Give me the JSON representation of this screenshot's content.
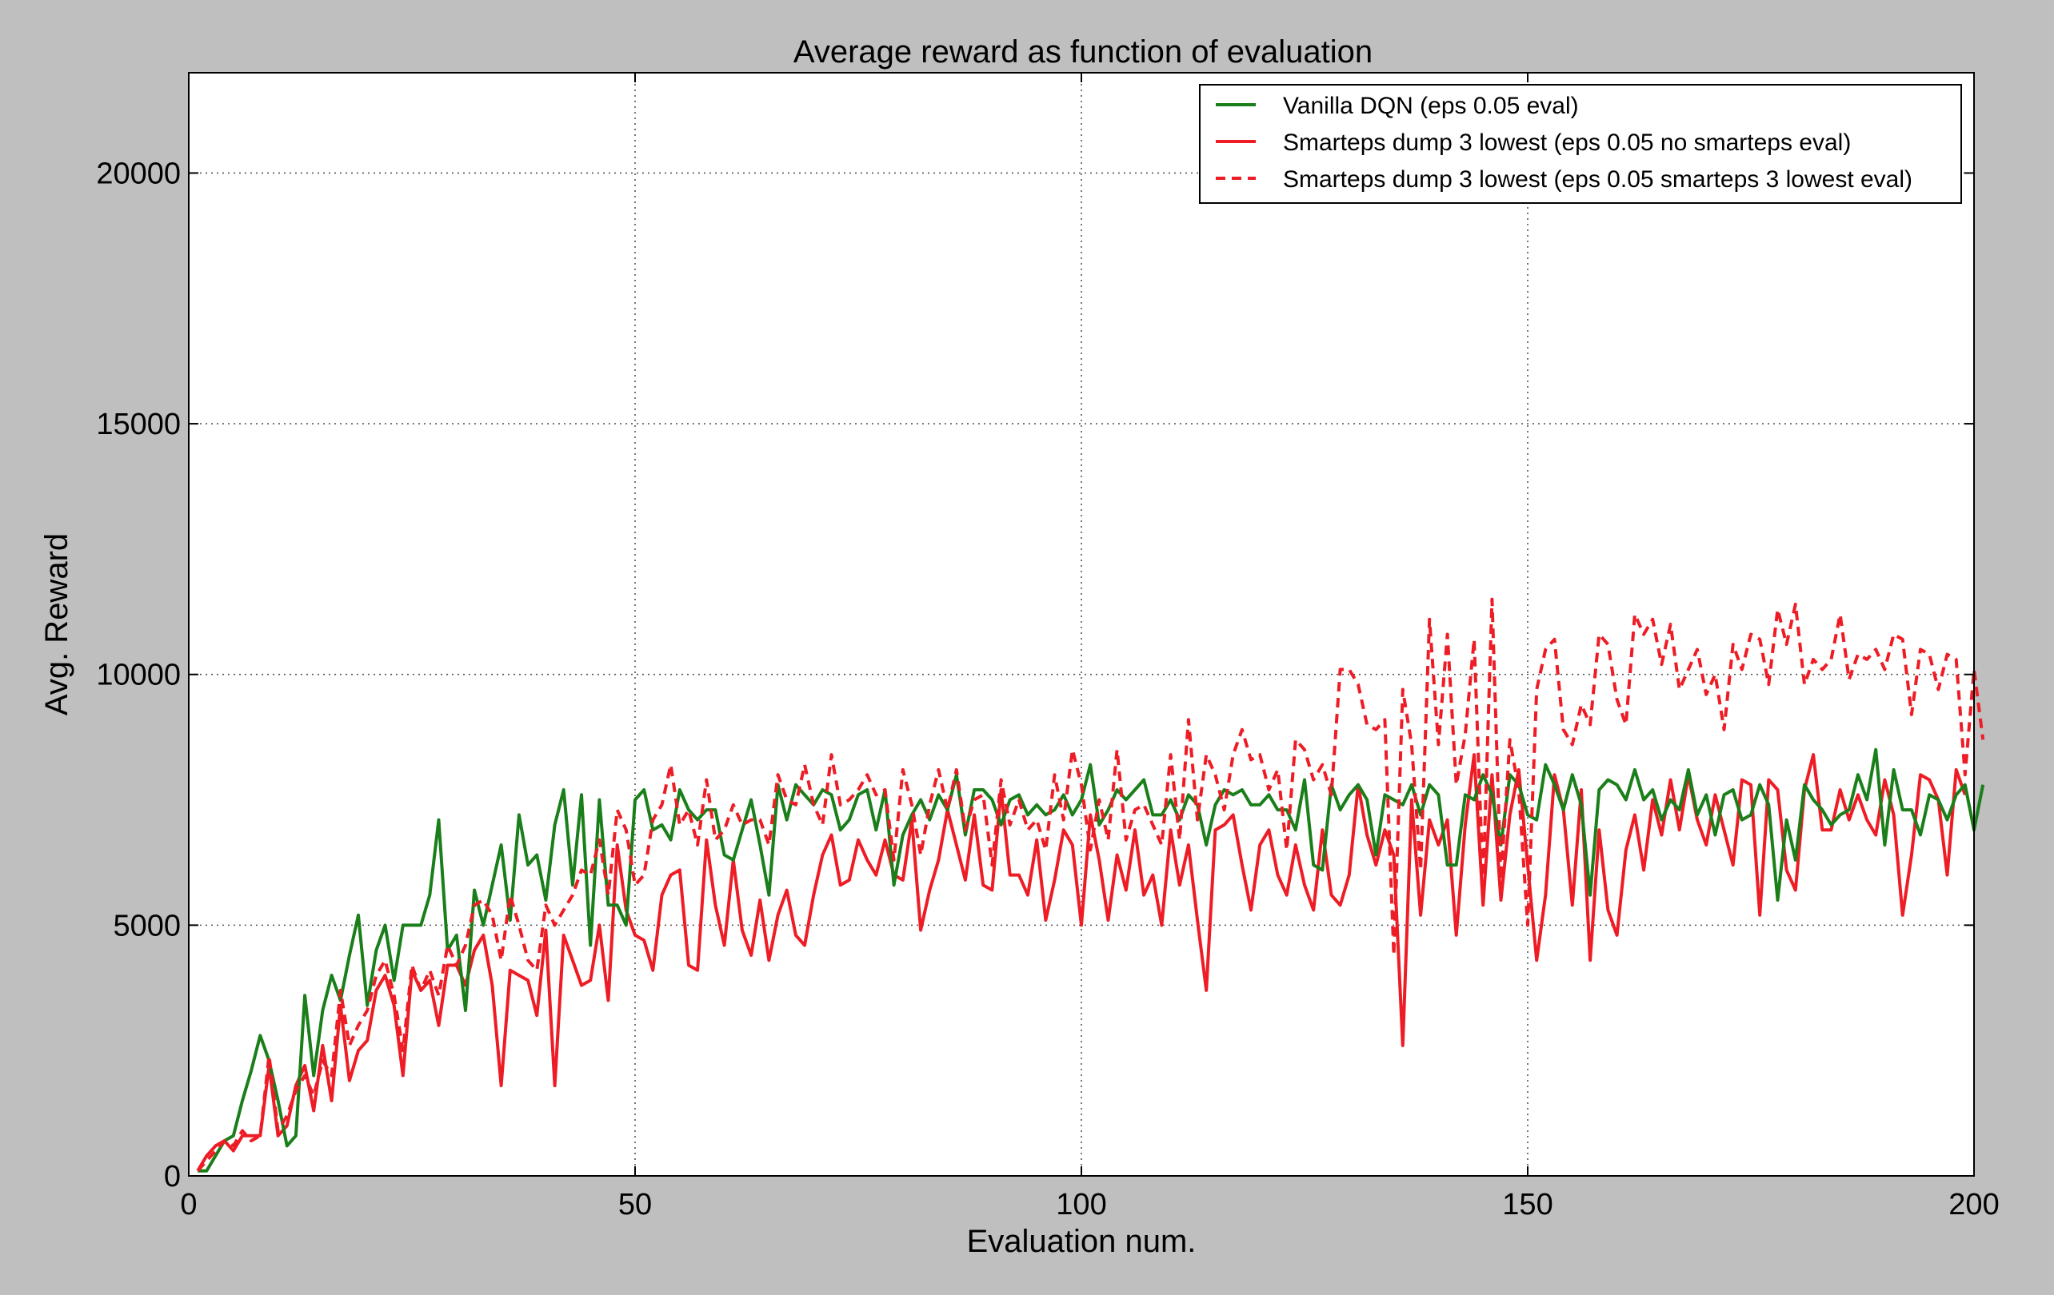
{
  "chart_data": {
    "type": "line",
    "title": "Average reward as function of evaluation",
    "xlabel": "Evaluation num.",
    "ylabel": "Avg. Reward",
    "xlim": [
      0,
      200
    ],
    "ylim": [
      0,
      22000
    ],
    "xticks": [
      0,
      50,
      100,
      150,
      200
    ],
    "yticks": [
      0,
      5000,
      10000,
      15000,
      20000
    ],
    "grid": true,
    "legend_position": "top-right",
    "series": [
      {
        "name": "Vanilla DQN (eps 0.05 eval)",
        "color": "#1a7f1a",
        "dash": "solid",
        "values": [
          100,
          100,
          400,
          700,
          800,
          1500,
          2100,
          2800,
          2300,
          1500,
          600,
          800,
          3600,
          2000,
          3300,
          4000,
          3500,
          4400,
          5200,
          3400,
          4500,
          5000,
          3900,
          5000,
          5000,
          5000,
          5600,
          7100,
          4500,
          4800,
          3300,
          5700,
          5000,
          5800,
          6600,
          5100,
          7200,
          6200,
          6400,
          5500,
          7000,
          7700,
          5800,
          7600,
          4600,
          7500,
          5400,
          5400,
          5000,
          7500,
          7700,
          6900,
          7000,
          6700,
          7700,
          7300,
          7100,
          7300,
          7300,
          6400,
          6300,
          6900,
          7500,
          6600,
          5600,
          7800,
          7100,
          7800,
          7600,
          7400,
          7700,
          7600,
          6900,
          7100,
          7600,
          7700,
          6900,
          7700,
          5800,
          6800,
          7200,
          7500,
          7100,
          7600,
          7300,
          8000,
          6800,
          7700,
          7700,
          7500,
          7000,
          7500,
          7600,
          7200,
          7400,
          7200,
          7300,
          7600,
          7200,
          7500,
          8200,
          7000,
          7300,
          7700,
          7500,
          7700,
          7900,
          7200,
          7200,
          7500,
          7100,
          7600,
          7400,
          6600,
          7400,
          7700,
          7600,
          7700,
          7400,
          7400,
          7600,
          7300,
          7300,
          6900,
          7900,
          6200,
          6100,
          7800,
          7300,
          7600,
          7800,
          7500,
          6400,
          7600,
          7500,
          7400,
          7800,
          7200,
          7800,
          7600,
          6200,
          6200,
          7600,
          7500,
          8000,
          7600,
          6600,
          8000,
          7800,
          7200,
          7100,
          8200,
          7800,
          7300,
          8000,
          7400,
          5600,
          7700,
          7900,
          7800,
          7500,
          8100,
          7500,
          7700,
          7100,
          7500,
          7300,
          8100,
          7200,
          7600,
          6800,
          7600,
          7700,
          7100,
          7200,
          7800,
          7400,
          5500,
          7100,
          6300,
          7800,
          7500,
          7300,
          7000,
          7200,
          7300,
          8000,
          7500,
          8500,
          6600,
          8100,
          7300,
          7300,
          6800,
          7600,
          7500,
          7100,
          7600,
          7800,
          6900,
          7800
        ]
      },
      {
        "name": "Smarteps dump 3 lowest (eps 0.05 no smarteps eval)",
        "color": "#ee1c25",
        "dash": "solid",
        "values": [
          100,
          400,
          600,
          700,
          500,
          800,
          800,
          800,
          2200,
          800,
          1000,
          1800,
          2200,
          1300,
          2600,
          1500,
          3400,
          1900,
          2500,
          2700,
          3700,
          4000,
          3400,
          2000,
          4100,
          3700,
          3900,
          3000,
          4200,
          4200,
          3800,
          4500,
          4800,
          3800,
          1800,
          4100,
          4000,
          3900,
          3200,
          4900,
          1800,
          4800,
          4300,
          3800,
          3900,
          5000,
          3500,
          6600,
          5300,
          4800,
          4700,
          4100,
          5600,
          6000,
          6100,
          4200,
          4100,
          6700,
          5400,
          4600,
          6300,
          4900,
          4400,
          5500,
          4300,
          5200,
          5700,
          4800,
          4600,
          5600,
          6400,
          6800,
          5800,
          5900,
          6700,
          6300,
          6000,
          6700,
          6000,
          5900,
          7100,
          4900,
          5700,
          6300,
          7300,
          6600,
          5900,
          7200,
          5800,
          5700,
          7700,
          6000,
          6000,
          5600,
          6700,
          5100,
          5900,
          6900,
          6600,
          5000,
          7200,
          6300,
          5100,
          6400,
          5700,
          6900,
          5600,
          6000,
          5000,
          6900,
          5800,
          6600,
          5100,
          3700,
          6900,
          7000,
          7200,
          6200,
          5300,
          6600,
          6900,
          6000,
          5600,
          6600,
          5800,
          5300,
          6900,
          5600,
          5400,
          6000,
          7800,
          6800,
          6200,
          6900,
          6400,
          2600,
          7500,
          5200,
          7100,
          6600,
          7100,
          4800,
          7000,
          8400,
          5400,
          8000,
          5500,
          7200,
          8100,
          6200,
          4300,
          5600,
          8000,
          7300,
          5400,
          7700,
          4300,
          6900,
          5300,
          4800,
          6500,
          7200,
          6100,
          7500,
          6800,
          7900,
          6900,
          8000,
          7100,
          6600,
          7600,
          6900,
          6200,
          7900,
          7800,
          5200,
          7900,
          7700,
          6100,
          5700,
          7700,
          8400,
          6900,
          6900,
          7700,
          7100,
          7600,
          7100,
          6800,
          7900,
          7200,
          5200,
          6400,
          8000,
          7900,
          7500,
          6000,
          8100,
          7600
        ]
      },
      {
        "name": "Smarteps dump 3 lowest (eps 0.05 smarteps 3 lowest eval)",
        "color": "#ee1c25",
        "dash": "dashed",
        "values": [
          100,
          300,
          500,
          700,
          600,
          900,
          700,
          800,
          2400,
          900,
          1200,
          1700,
          2000,
          1600,
          2300,
          2000,
          3700,
          2600,
          3000,
          3300,
          4000,
          4300,
          3600,
          2500,
          4200,
          3700,
          4100,
          3600,
          4600,
          4200,
          4600,
          5400,
          5500,
          5200,
          4300,
          5600,
          5000,
          4300,
          4100,
          5400,
          5000,
          5300,
          5600,
          6100,
          6000,
          6700,
          5600,
          7300,
          6900,
          5800,
          6000,
          7100,
          7400,
          8200,
          7000,
          7300,
          6600,
          7900,
          6700,
          6900,
          7400,
          7000,
          7100,
          7100,
          6600,
          8000,
          7500,
          7400,
          8200,
          7400,
          7000,
          8400,
          7400,
          7500,
          7700,
          8000,
          7600,
          7700,
          6300,
          8100,
          7400,
          6400,
          7400,
          8100,
          7300,
          8100,
          6900,
          7500,
          7600,
          6200,
          7900,
          7000,
          7500,
          6900,
          7100,
          6500,
          8000,
          7100,
          8500,
          7800,
          6500,
          7500,
          6700,
          8500,
          6700,
          7300,
          7400,
          7000,
          6600,
          8400,
          6700,
          9100,
          7100,
          8400,
          8000,
          7300,
          8400,
          8900,
          8300,
          8400,
          7700,
          8100,
          6500,
          8700,
          8500,
          7900,
          8200,
          7600,
          10100,
          10100,
          9800,
          9000,
          8900,
          9100,
          4400,
          9700,
          8600,
          6100,
          11100,
          8600,
          10800,
          7800,
          8800,
          10700,
          5800,
          11500,
          5900,
          8700,
          7700,
          5000,
          9700,
          10500,
          10700,
          8900,
          8600,
          9400,
          9000,
          10800,
          10600,
          9500,
          9000,
          11200,
          10800,
          11100,
          10200,
          11000,
          9700,
          10100,
          10500,
          9600,
          10000,
          8900,
          10600,
          10100,
          10800,
          10700,
          9800,
          11300,
          10600,
          11400,
          9800,
          10300,
          10100,
          10300,
          11200,
          9900,
          10400,
          10300,
          10500,
          10100,
          10800,
          10700,
          9200,
          10500,
          10400,
          9700,
          10400,
          10300,
          8000,
          10100,
          8700
        ]
      }
    ]
  }
}
